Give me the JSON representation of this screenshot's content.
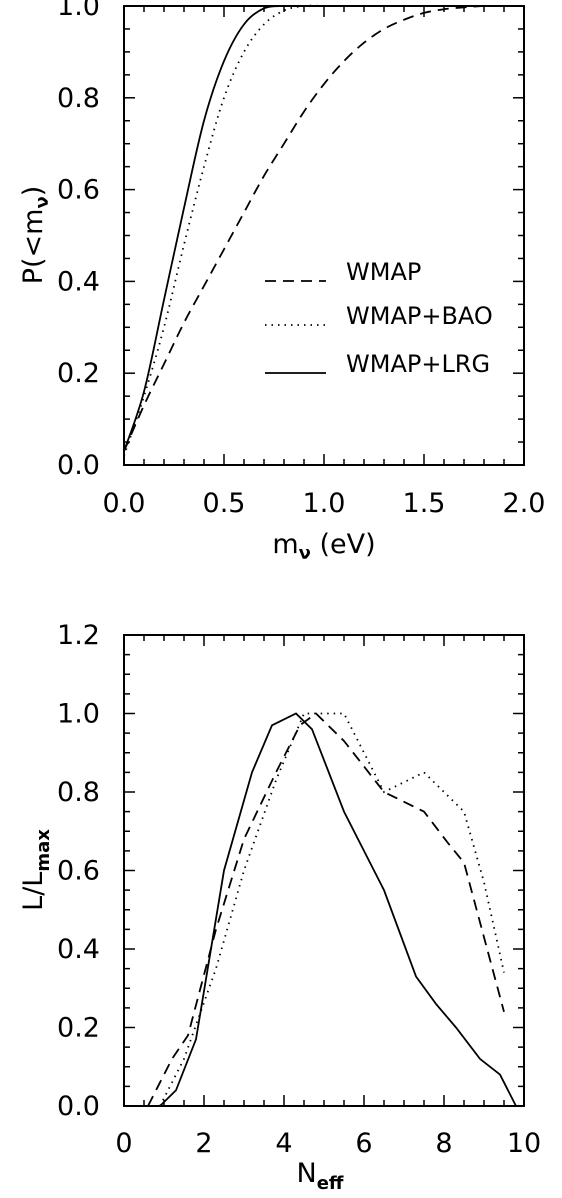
{
  "chart_data": [
    {
      "type": "line",
      "title": "",
      "xlabel": "m",
      "xlabel_sub": "ν",
      "xlabel_unit": " (eV)",
      "ylabel": "P(<m",
      "ylabel_sub": "ν",
      "ylabel_end": ")",
      "xlim": [
        0,
        2
      ],
      "ylim": [
        0,
        1
      ],
      "xticks": [
        "0.0",
        "0.5",
        "1.0",
        "1.5",
        "2.0"
      ],
      "xtick_values": [
        0,
        0.5,
        1,
        1.5,
        2
      ],
      "yticks": [
        "0.0",
        "0.2",
        "0.4",
        "0.6",
        "0.8",
        "1.0"
      ],
      "ytick_values": [
        0,
        0.2,
        0.4,
        0.6,
        0.8,
        1.0
      ],
      "legend_position": "middle-right",
      "series": [
        {
          "name": "WMAP",
          "style": "dashed",
          "x": [
            0,
            0.1,
            0.2,
            0.3,
            0.4,
            0.5,
            0.6,
            0.7,
            0.8,
            0.9,
            1.0,
            1.1,
            1.2,
            1.3,
            1.4,
            1.5,
            1.6,
            1.7,
            1.8,
            1.9,
            2.0
          ],
          "y": [
            0.03,
            0.13,
            0.22,
            0.31,
            0.39,
            0.47,
            0.55,
            0.63,
            0.7,
            0.77,
            0.83,
            0.88,
            0.92,
            0.95,
            0.97,
            0.985,
            0.993,
            0.997,
            1.0,
            1.0,
            1.0
          ]
        },
        {
          "name": "WMAP+BAO",
          "style": "dotted",
          "x": [
            0,
            0.1,
            0.2,
            0.3,
            0.4,
            0.5,
            0.6,
            0.7,
            0.8,
            0.9,
            1.0
          ],
          "y": [
            0.02,
            0.15,
            0.3,
            0.48,
            0.65,
            0.8,
            0.9,
            0.96,
            0.99,
            1.0,
            1.0
          ]
        },
        {
          "name": "WMAP+LRG",
          "style": "solid",
          "x": [
            0,
            0.1,
            0.2,
            0.3,
            0.4,
            0.5,
            0.6,
            0.7,
            0.8
          ],
          "y": [
            0.03,
            0.16,
            0.36,
            0.56,
            0.75,
            0.88,
            0.96,
            0.995,
            1.0
          ]
        }
      ]
    },
    {
      "type": "line",
      "title": "",
      "xlabel": "N",
      "xlabel_sub": "eff",
      "ylabel": "L/L",
      "ylabel_sub": "max",
      "xlim": [
        0,
        10
      ],
      "ylim": [
        0,
        1.2
      ],
      "xticks": [
        "0",
        "2",
        "4",
        "6",
        "8",
        "10"
      ],
      "xtick_values": [
        0,
        2,
        4,
        6,
        8,
        10
      ],
      "yticks": [
        "0.0",
        "0.2",
        "0.4",
        "0.6",
        "0.8",
        "1.0",
        "1.2"
      ],
      "ytick_values": [
        0,
        0.2,
        0.4,
        0.6,
        0.8,
        1.0,
        1.2
      ],
      "series": [
        {
          "name": "WMAP",
          "style": "dashed",
          "x": [
            0.6,
            1.2,
            1.6,
            2.3,
            3.0,
            3.8,
            4.4,
            4.8,
            5.5,
            6.5,
            7.5,
            8.1,
            8.5,
            9.0,
            9.5
          ],
          "y": [
            0.0,
            0.12,
            0.18,
            0.45,
            0.68,
            0.85,
            0.97,
            1.0,
            0.93,
            0.8,
            0.75,
            0.67,
            0.62,
            0.43,
            0.24
          ]
        },
        {
          "name": "WMAP+BAO",
          "style": "dotted",
          "x": [
            0.9,
            1.5,
            2.3,
            3.0,
            3.8,
            4.5,
            5.5,
            6.5,
            7.5,
            8.0,
            8.5,
            9.0,
            9.5
          ],
          "y": [
            0.0,
            0.12,
            0.35,
            0.6,
            0.83,
            1.0,
            1.0,
            0.8,
            0.85,
            0.8,
            0.75,
            0.57,
            0.34
          ]
        },
        {
          "name": "WMAP+LRG",
          "style": "solid",
          "x": [
            0.6,
            0.9,
            1.3,
            1.8,
            2.5,
            3.2,
            3.7,
            4.3,
            4.7,
            5.5,
            6.5,
            7.3,
            7.8,
            8.3,
            8.9,
            9.4,
            9.8
          ],
          "y": [
            0.0,
            0.0,
            0.04,
            0.17,
            0.6,
            0.85,
            0.97,
            1.0,
            0.96,
            0.75,
            0.55,
            0.33,
            0.26,
            0.2,
            0.12,
            0.08,
            0.0
          ]
        }
      ]
    }
  ]
}
